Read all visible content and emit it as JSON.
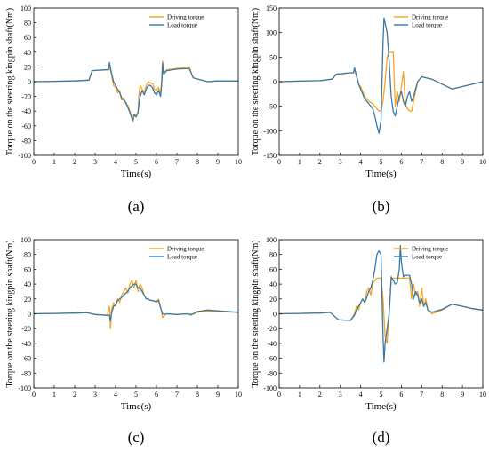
{
  "colors": {
    "driving": "#F5A623",
    "load": "#3A78A8"
  },
  "chart_data": [
    {
      "id": "a",
      "type": "line",
      "caption": "(a)",
      "xlabel": "Time(s)",
      "ylabel": "Torque on the steering kingpin shaft(Nm)",
      "xlim": [
        0,
        10
      ],
      "ylim": [
        -100,
        100
      ],
      "xticks": [
        0,
        1,
        2,
        3,
        4,
        5,
        6,
        7,
        8,
        9,
        10
      ],
      "yticks": [
        -100,
        -80,
        -60,
        -40,
        -20,
        0,
        20,
        40,
        60,
        80,
        100
      ],
      "legend": "top-right",
      "series": [
        {
          "name": "Driving torque",
          "color": "#F5A623",
          "x": [
            0,
            1,
            2,
            2.7,
            2.85,
            3.5,
            3.65,
            3.7,
            3.8,
            3.9,
            4.0,
            4.1,
            4.2,
            4.3,
            4.4,
            4.5,
            4.6,
            4.7,
            4.8,
            4.85,
            4.9,
            5.0,
            5.1,
            5.15,
            5.2,
            5.3,
            5.4,
            5.5,
            5.6,
            5.7,
            5.8,
            5.9,
            6.0,
            6.1,
            6.2,
            6.25,
            6.3,
            6.35,
            6.5,
            7.0,
            7.6,
            7.8,
            8.5,
            9,
            10
          ],
          "y": [
            0,
            0.5,
            1,
            2,
            15,
            16,
            16,
            20,
            10,
            -5,
            -8,
            -15,
            -12,
            -25,
            -22,
            -30,
            -32,
            -40,
            -48,
            -55,
            -44,
            -45,
            -42,
            -15,
            -5,
            -10,
            -15,
            -5,
            0,
            -2,
            -2,
            -10,
            -12,
            -8,
            -15,
            0,
            28,
            12,
            16,
            18,
            20,
            5,
            0,
            1,
            1
          ]
        },
        {
          "name": "Load torque",
          "color": "#3A78A8",
          "x": [
            0,
            1,
            2,
            2.7,
            2.85,
            3.5,
            3.65,
            3.7,
            3.8,
            3.9,
            4.0,
            4.1,
            4.2,
            4.3,
            4.4,
            4.5,
            4.6,
            4.7,
            4.8,
            4.85,
            4.9,
            5.0,
            5.1,
            5.15,
            5.2,
            5.3,
            5.4,
            5.5,
            5.6,
            5.7,
            5.8,
            5.9,
            6.0,
            6.1,
            6.2,
            6.25,
            6.3,
            6.35,
            6.5,
            7.0,
            7.6,
            7.8,
            8.5,
            9,
            10
          ],
          "y": [
            0,
            0.5,
            1,
            2,
            15,
            16,
            16,
            26,
            12,
            0,
            -5,
            -10,
            -15,
            -22,
            -25,
            -28,
            -35,
            -42,
            -50,
            -52,
            -45,
            -48,
            -42,
            -28,
            -20,
            -12,
            -18,
            -10,
            -5,
            -5,
            -8,
            -15,
            -18,
            -12,
            -20,
            -5,
            25,
            10,
            15,
            17,
            18,
            5,
            0,
            1,
            1
          ]
        }
      ]
    },
    {
      "id": "b",
      "type": "line",
      "caption": "(b)",
      "xlabel": "Time(s)",
      "ylabel": "Torque on the steering kingpin shaft(Nm)",
      "xlim": [
        0,
        10
      ],
      "ylim": [
        -150,
        150
      ],
      "xticks": [
        0,
        1,
        2,
        3,
        4,
        5,
        6,
        7,
        8,
        9,
        10
      ],
      "yticks": [
        -150,
        -100,
        -50,
        0,
        50,
        100,
        150
      ],
      "legend": "top-right",
      "series": [
        {
          "name": "Driving torque",
          "color": "#F5A623",
          "x": [
            0,
            1,
            2,
            2.6,
            2.8,
            3.5,
            3.65,
            3.7,
            3.8,
            3.9,
            4.0,
            4.1,
            4.2,
            4.4,
            4.6,
            4.8,
            4.9,
            5.0,
            5.1,
            5.2,
            5.3,
            5.4,
            5.5,
            5.6,
            5.7,
            5.8,
            5.9,
            6.0,
            6.1,
            6.2,
            6.3,
            6.4,
            6.5,
            6.6,
            6.7,
            6.8,
            7.0,
            7.5,
            8.0,
            8.5,
            9.0,
            9.5,
            10
          ],
          "y": [
            0,
            1,
            2,
            5,
            15,
            18,
            18,
            25,
            10,
            -5,
            -10,
            -20,
            -30,
            -40,
            -45,
            -55,
            -60,
            -60,
            -40,
            0,
            50,
            60,
            60,
            60,
            -50,
            -20,
            -40,
            -10,
            20,
            -45,
            -55,
            -60,
            -60,
            -40,
            -20,
            0,
            10,
            5,
            -5,
            -15,
            -10,
            -5,
            0
          ]
        },
        {
          "name": "Load torque",
          "color": "#3A78A8",
          "x": [
            0,
            1,
            2,
            2.6,
            2.8,
            3.5,
            3.65,
            3.7,
            3.8,
            3.9,
            4.0,
            4.1,
            4.2,
            4.4,
            4.6,
            4.7,
            4.8,
            4.9,
            5.0,
            5.1,
            5.15,
            5.2,
            5.3,
            5.4,
            5.5,
            5.6,
            5.7,
            5.8,
            5.9,
            6.0,
            6.1,
            6.2,
            6.3,
            6.4,
            6.5,
            6.6,
            6.7,
            6.8,
            7.0,
            7.5,
            8.0,
            8.5,
            9.0,
            9.5,
            10
          ],
          "y": [
            0,
            1,
            2,
            5,
            15,
            18,
            18,
            28,
            12,
            -5,
            -15,
            -25,
            -35,
            -45,
            -55,
            -70,
            -90,
            -105,
            -80,
            80,
            130,
            120,
            100,
            40,
            -30,
            -60,
            -70,
            -50,
            -30,
            -20,
            -40,
            -50,
            -30,
            -20,
            -40,
            -30,
            -15,
            0,
            10,
            5,
            -5,
            -15,
            -10,
            -5,
            0
          ]
        }
      ]
    },
    {
      "id": "c",
      "type": "line",
      "caption": "(c)",
      "xlabel": "Time(s)",
      "ylabel": "Torque on the steering kingpin shaft(Nm)",
      "xlim": [
        0,
        10
      ],
      "ylim": [
        -100,
        100
      ],
      "xticks": [
        0,
        1,
        2,
        3,
        4,
        5,
        6,
        7,
        8,
        9,
        10
      ],
      "yticks": [
        -100,
        -80,
        -60,
        -40,
        -20,
        0,
        20,
        40,
        60,
        80,
        100
      ],
      "legend": "top-right",
      "series": [
        {
          "name": "Driving torque",
          "color": "#F5A623",
          "x": [
            0,
            1,
            2,
            2.6,
            3.0,
            3.6,
            3.7,
            3.75,
            3.8,
            3.9,
            4.0,
            4.1,
            4.2,
            4.3,
            4.4,
            4.5,
            4.6,
            4.7,
            4.8,
            4.9,
            5.0,
            5.1,
            5.2,
            5.3,
            5.4,
            5.5,
            5.6,
            5.7,
            5.8,
            5.9,
            6.0,
            6.1,
            6.2,
            6.3,
            6.4,
            6.5,
            7.0,
            7.5,
            7.7,
            7.8,
            8.0,
            8.5,
            9,
            10
          ],
          "y": [
            0,
            0.5,
            1,
            1.5,
            -1,
            -2,
            10,
            -20,
            5,
            15,
            10,
            20,
            15,
            25,
            30,
            35,
            28,
            40,
            45,
            35,
            45,
            30,
            40,
            35,
            25,
            20,
            20,
            18,
            18,
            17,
            16,
            20,
            10,
            -5,
            -2,
            0,
            -1,
            0,
            -2,
            0,
            2,
            4,
            3,
            2
          ]
        },
        {
          "name": "Load torque",
          "color": "#3A78A8",
          "x": [
            0,
            1,
            2,
            2.6,
            3.0,
            3.6,
            3.7,
            3.75,
            3.8,
            3.9,
            4.0,
            4.1,
            4.2,
            4.3,
            4.4,
            4.5,
            4.6,
            4.7,
            4.8,
            4.9,
            5.0,
            5.1,
            5.2,
            5.3,
            5.4,
            5.5,
            5.6,
            5.7,
            5.8,
            5.9,
            6.0,
            6.1,
            6.2,
            6.3,
            6.4,
            6.5,
            7.0,
            7.5,
            7.7,
            7.8,
            8.0,
            8.5,
            9,
            10
          ],
          "y": [
            0,
            0.5,
            1,
            1.5,
            -1,
            -2,
            -2,
            -10,
            0,
            10,
            12,
            18,
            20,
            22,
            25,
            28,
            30,
            35,
            38,
            40,
            40,
            35,
            35,
            30,
            25,
            20,
            20,
            18,
            18,
            17,
            16,
            18,
            8,
            0,
            -1,
            0,
            -1,
            0,
            -1,
            0,
            3,
            5,
            4,
            2
          ]
        }
      ]
    },
    {
      "id": "d",
      "type": "line",
      "caption": "(d)",
      "xlabel": "Time(s)",
      "ylabel": "Torque on the steering kingpin shaft(Nm)",
      "xlim": [
        0,
        10
      ],
      "ylim": [
        -100,
        100
      ],
      "xticks": [
        0,
        1,
        2,
        3,
        4,
        5,
        6,
        7,
        8,
        9,
        10
      ],
      "yticks": [
        -100,
        -80,
        -60,
        -40,
        -20,
        0,
        20,
        40,
        60,
        80,
        100
      ],
      "legend": "top-right",
      "series": [
        {
          "name": "Driving torque",
          "color": "#F5A623",
          "x": [
            0,
            1,
            2,
            2.5,
            2.9,
            3.5,
            3.7,
            3.8,
            3.9,
            4.0,
            4.1,
            4.2,
            4.3,
            4.4,
            4.5,
            4.6,
            4.7,
            4.8,
            4.9,
            5.0,
            5.1,
            5.2,
            5.3,
            5.4,
            5.5,
            5.6,
            5.7,
            5.8,
            5.9,
            6.0,
            6.2,
            6.4,
            6.5,
            6.6,
            6.7,
            6.8,
            6.9,
            7.0,
            7.1,
            7.2,
            7.3,
            7.5,
            8.0,
            8.5,
            9.0,
            9.5,
            10
          ],
          "y": [
            0,
            0.5,
            1,
            2,
            -8,
            -9,
            0,
            10,
            5,
            15,
            20,
            15,
            30,
            35,
            25,
            40,
            45,
            48,
            48,
            48,
            20,
            -30,
            -40,
            0,
            45,
            48,
            48,
            48,
            48,
            48,
            48,
            48,
            20,
            40,
            25,
            30,
            10,
            35,
            10,
            20,
            5,
            0,
            5,
            13,
            10,
            7,
            5
          ]
        },
        {
          "name": "Load torque",
          "color": "#3A78A8",
          "x": [
            0,
            1,
            2,
            2.5,
            2.9,
            3.5,
            3.7,
            3.8,
            3.9,
            4.0,
            4.1,
            4.2,
            4.3,
            4.4,
            4.5,
            4.6,
            4.7,
            4.8,
            4.9,
            5.0,
            5.1,
            5.15,
            5.2,
            5.3,
            5.4,
            5.5,
            5.6,
            5.7,
            5.8,
            5.9,
            5.95,
            6.0,
            6.1,
            6.2,
            6.4,
            6.5,
            6.6,
            6.7,
            6.8,
            6.9,
            7.0,
            7.1,
            7.2,
            7.3,
            7.5,
            8.0,
            8.5,
            9.0,
            9.5,
            10
          ],
          "y": [
            0,
            0.5,
            1,
            2,
            -8,
            -9,
            -2,
            5,
            10,
            15,
            20,
            15,
            22,
            30,
            35,
            45,
            60,
            80,
            85,
            80,
            -30,
            -65,
            -40,
            -20,
            0,
            50,
            45,
            40,
            42,
            60,
            92,
            70,
            50,
            52,
            52,
            40,
            20,
            30,
            25,
            15,
            20,
            10,
            15,
            5,
            2,
            6,
            13,
            10,
            7,
            5
          ]
        }
      ]
    }
  ]
}
